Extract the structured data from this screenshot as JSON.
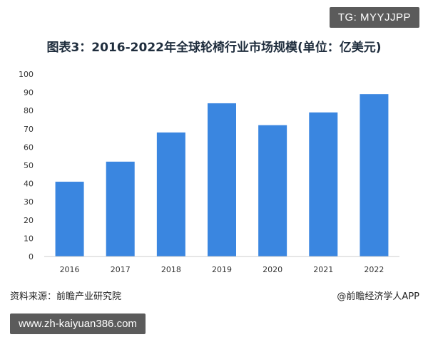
{
  "watermark_tag": "TG: MYYJJPP",
  "footer": {
    "source": "资料来源：前瞻产业研究院",
    "app": "@前瞻经济学人APP",
    "url": "www.zh-kaiyuan386.com"
  },
  "chart_data": {
    "type": "bar",
    "title": "图表3：2016-2022年全球轮椅行业市场规模(单位：亿美元)",
    "categories": [
      "2016",
      "2017",
      "2018",
      "2019",
      "2020",
      "2021",
      "2022"
    ],
    "values": [
      41,
      52,
      68,
      84,
      72,
      79,
      89
    ],
    "ylim": [
      0,
      100
    ],
    "yticks": [
      0,
      10,
      20,
      30,
      40,
      50,
      60,
      70,
      80,
      90,
      100
    ],
    "bar_color": "#3a86e0",
    "grid": false,
    "xlabel": "",
    "ylabel": ""
  }
}
